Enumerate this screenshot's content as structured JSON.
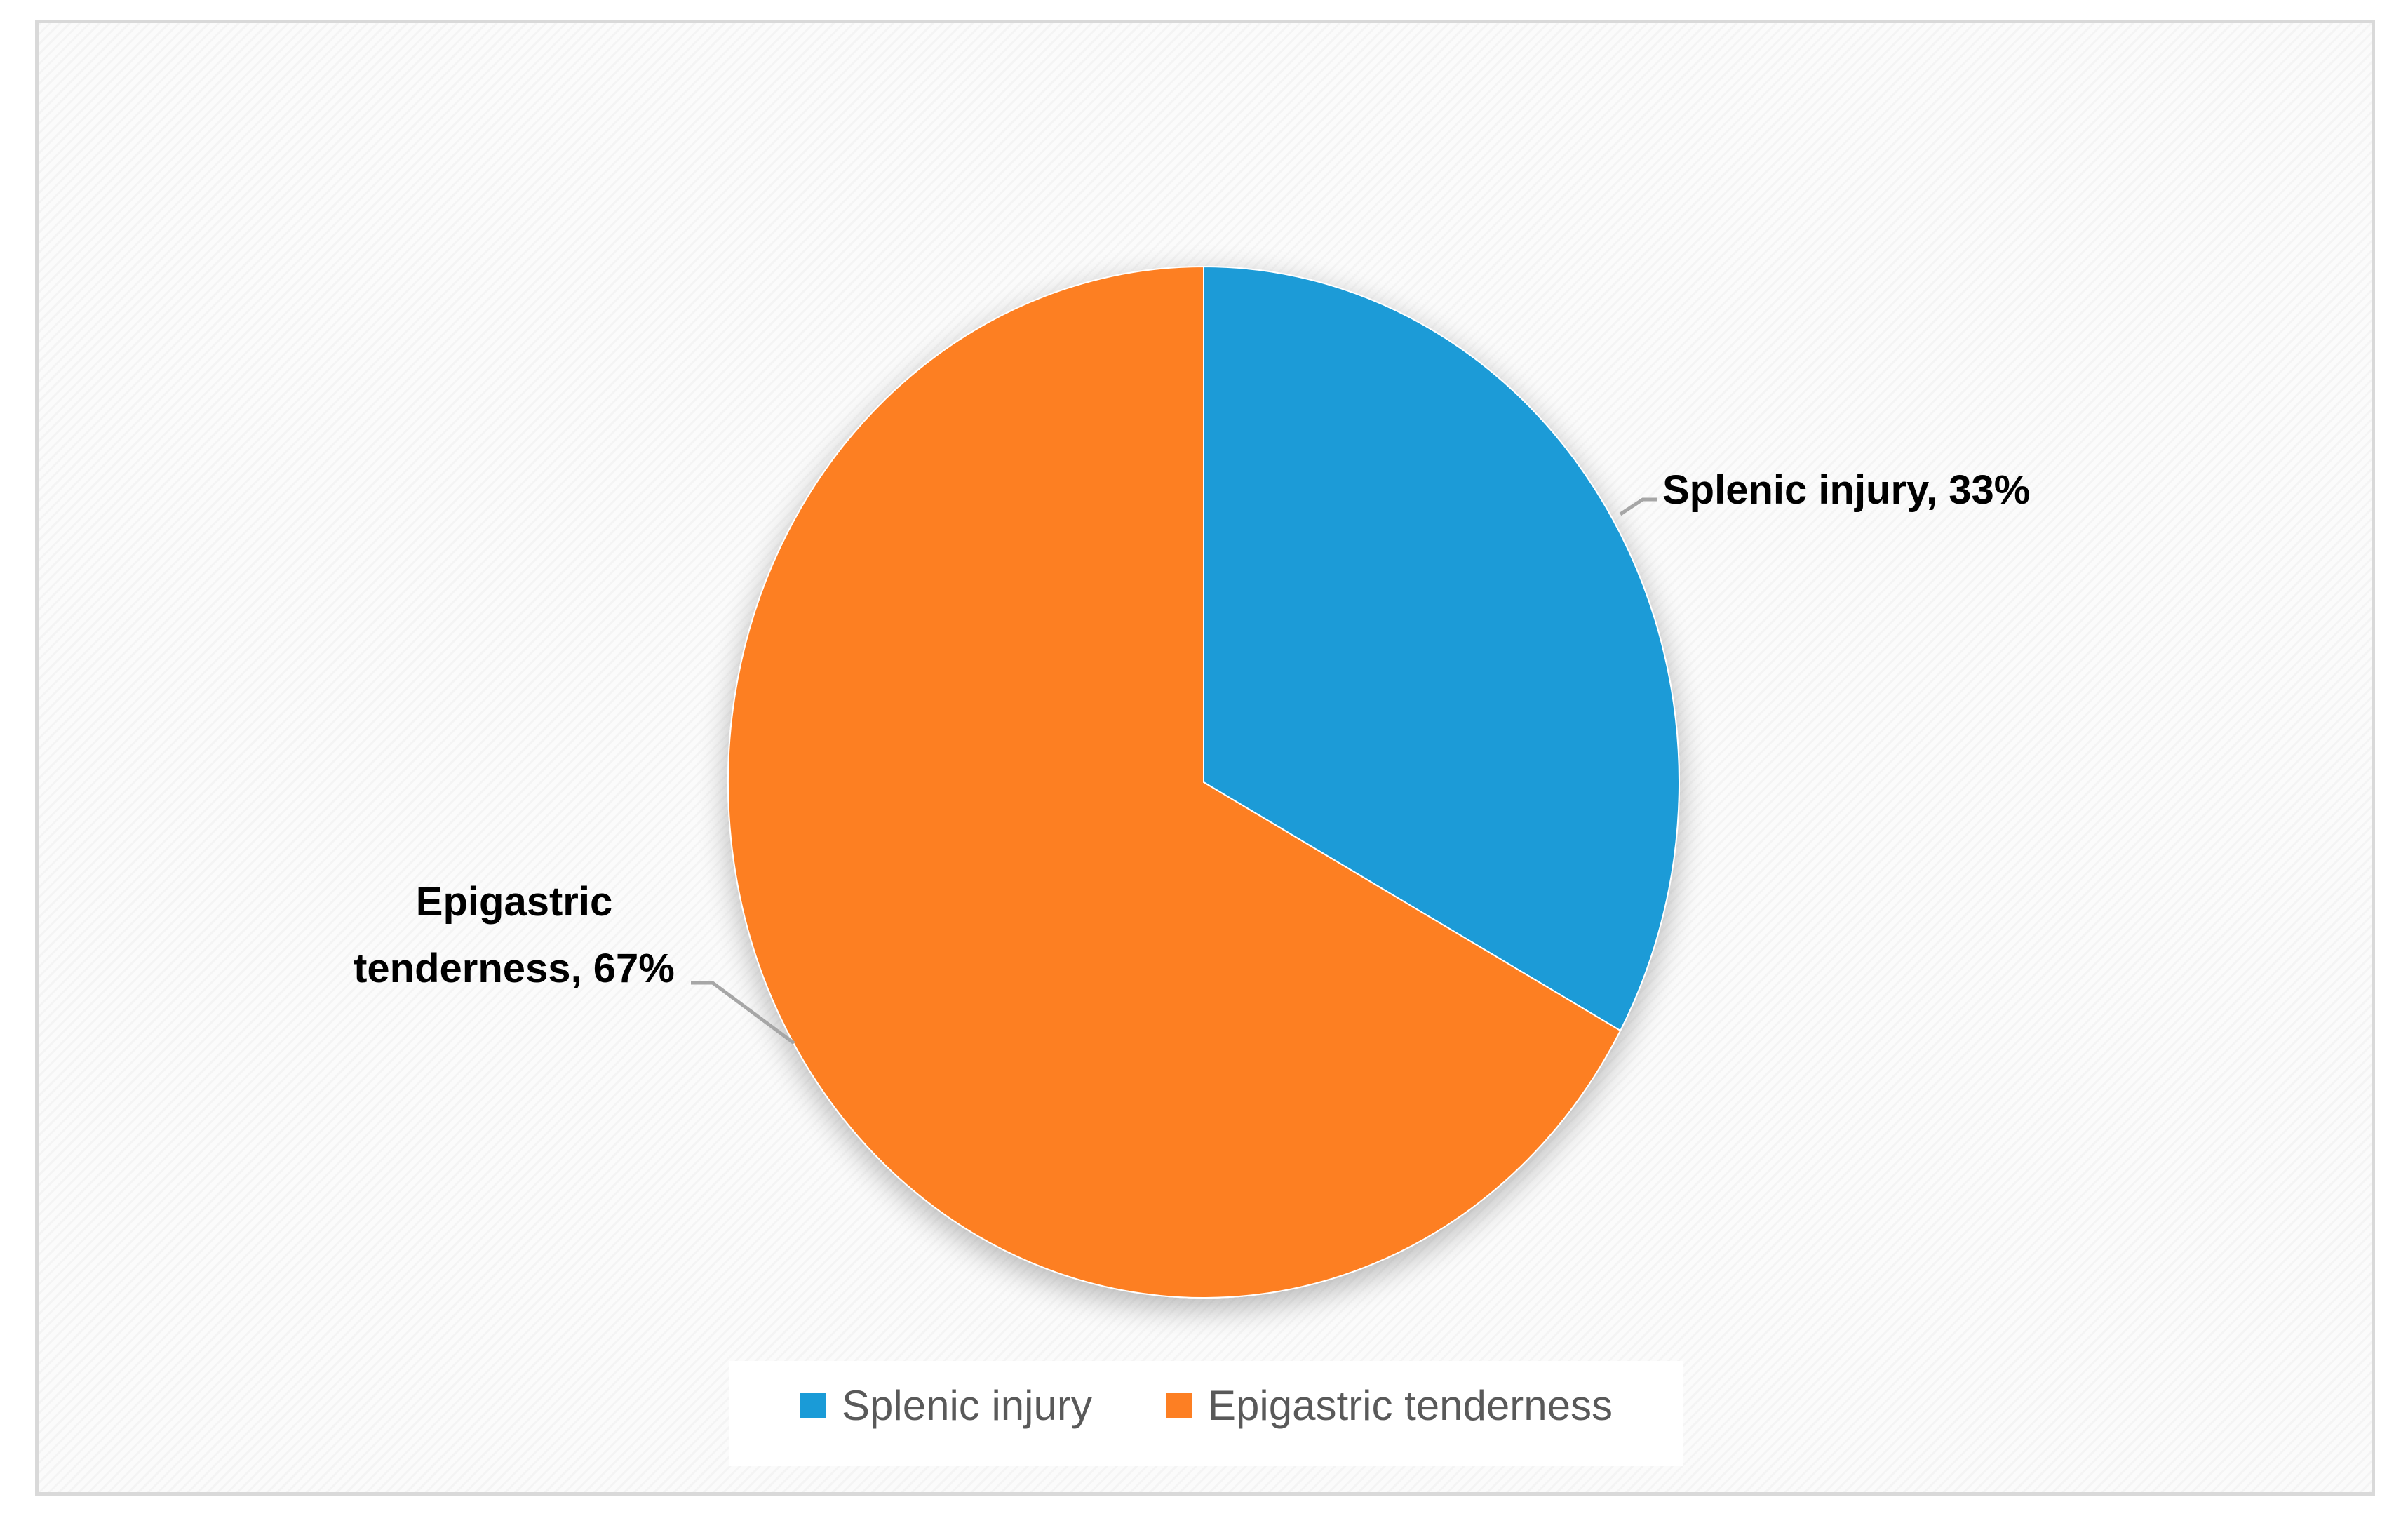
{
  "chart_data": {
    "type": "pie",
    "title": "",
    "categories": [
      "Splenic injury",
      "Epigastric tenderness"
    ],
    "values": [
      33,
      67
    ],
    "unit": "%",
    "colors": [
      "#1a9bd7",
      "#fd7f23"
    ],
    "data_labels": [
      [
        "Splenic injury, 33%"
      ],
      [
        "Epigastric",
        "tenderness, 67%"
      ]
    ],
    "legend": {
      "position": "bottom",
      "items": [
        "Splenic injury",
        "Epigastric tenderness"
      ]
    }
  }
}
